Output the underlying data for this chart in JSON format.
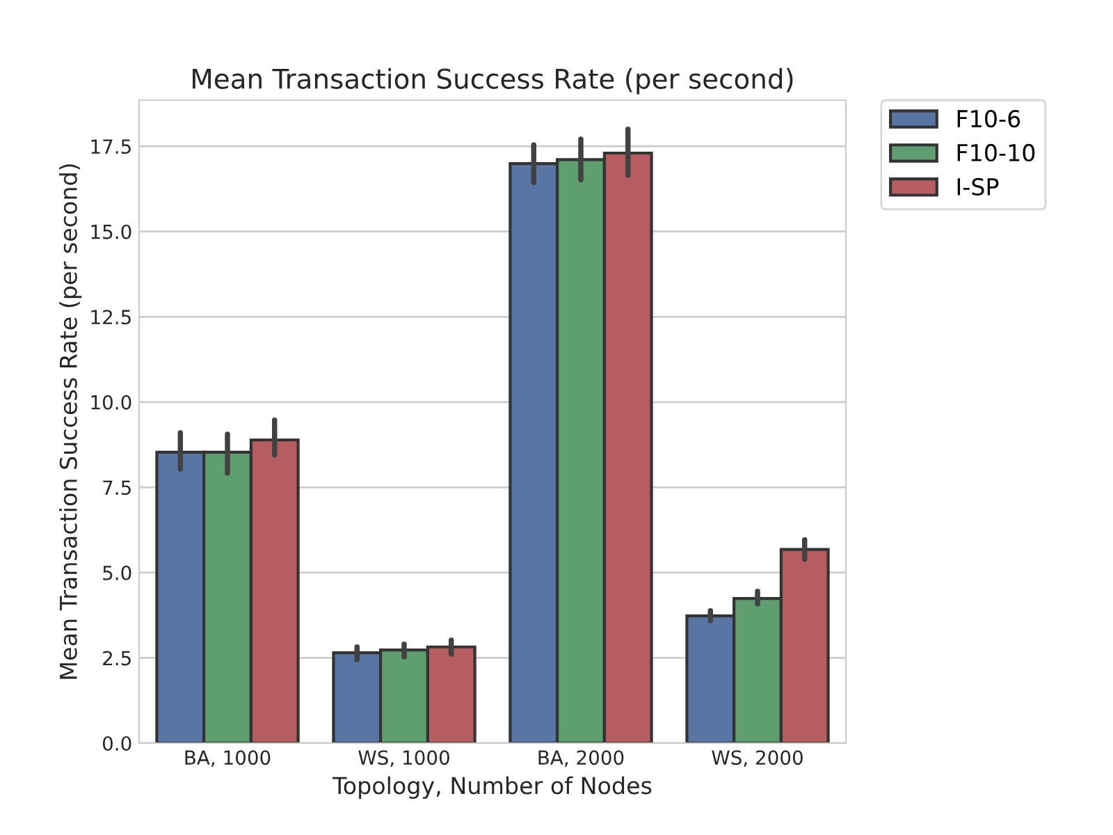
{
  "chart_data": {
    "type": "bar",
    "title": "Mean Transaction Success Rate (per second)",
    "xlabel": "Topology, Number of Nodes",
    "ylabel": "Mean Transaction Success Rate (per second)",
    "categories": [
      "BA, 1000",
      "WS, 1000",
      "BA, 2000",
      "WS, 2000"
    ],
    "series": [
      {
        "name": "F10-6",
        "color": "#5875a4",
        "values": [
          8.53,
          2.65,
          16.99,
          3.73
        ],
        "errors": [
          [
            8.04,
            9.1
          ],
          [
            2.45,
            2.82
          ],
          [
            16.44,
            17.54
          ],
          [
            3.59,
            3.88
          ]
        ]
      },
      {
        "name": "F10-10",
        "color": "#5f9e6e",
        "values": [
          8.53,
          2.73,
          17.11,
          4.24
        ],
        "errors": [
          [
            7.92,
            9.06
          ],
          [
            2.53,
            2.9
          ],
          [
            16.52,
            17.71
          ],
          [
            4.08,
            4.45
          ]
        ]
      },
      {
        "name": "I-SP",
        "color": "#b55d60",
        "values": [
          8.89,
          2.82,
          17.3,
          5.68
        ],
        "errors": [
          [
            8.45,
            9.47
          ],
          [
            2.61,
            3.02
          ],
          [
            16.65,
            18.0
          ],
          [
            5.39,
            5.96
          ]
        ]
      }
    ],
    "ylim": [
      0,
      18.85
    ],
    "yticks": [
      {
        "value": 0,
        "label": "0.0"
      },
      2.5,
      {
        "value": 5,
        "label": "5.0"
      },
      7.5,
      {
        "value": 10,
        "label": "10.0"
      },
      12.5,
      {
        "value": 15,
        "label": "15.0"
      },
      17.5
    ],
    "grid": "y",
    "legend": "top right"
  }
}
